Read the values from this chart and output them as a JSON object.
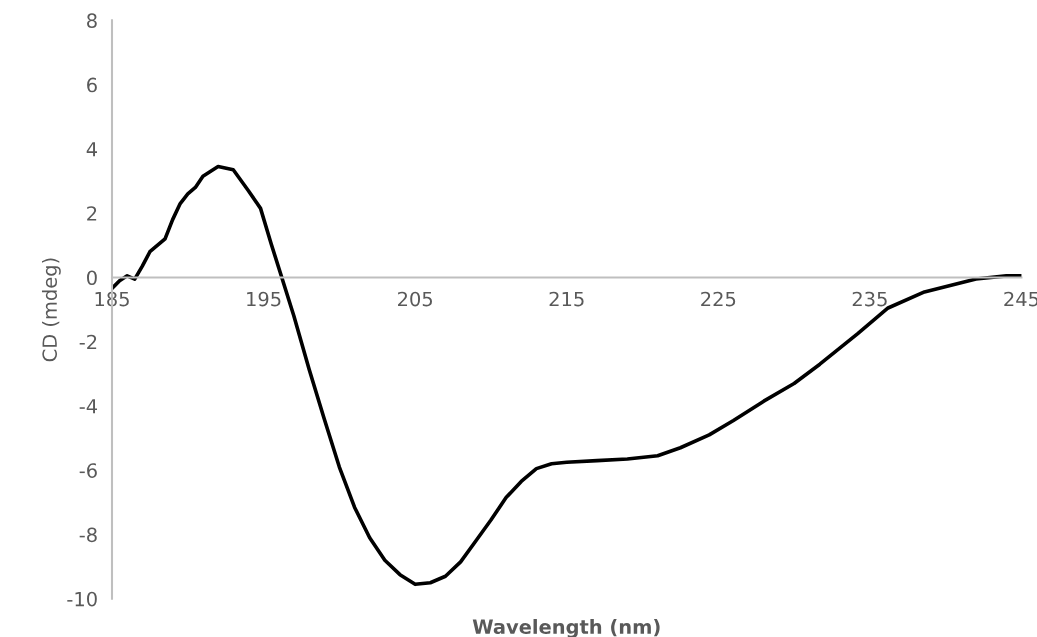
{
  "chart_data": {
    "type": "line",
    "xlabel": "Wavelength (nm)",
    "ylabel": "CD (mdeg)",
    "xlim": [
      185,
      245
    ],
    "xticks": [
      185,
      195,
      205,
      215,
      225,
      235,
      245
    ],
    "ylim": [
      -10,
      8
    ],
    "yticks": [
      -10,
      -8,
      -6,
      -4,
      -2,
      0,
      2,
      4,
      6,
      8
    ],
    "grid": false,
    "legend": false,
    "marker": "none",
    "line_style": "solid",
    "series": [
      {
        "color": "#000000",
        "x": [
          185,
          185.5,
          186,
          186.5,
          187,
          187.5,
          188.5,
          189,
          189.5,
          190,
          190.5,
          191,
          192,
          193,
          194,
          194.8,
          195.5,
          196,
          197,
          198,
          199,
          200,
          201,
          202,
          203,
          204,
          205,
          206,
          207,
          208,
          209,
          210,
          211,
          212,
          213,
          214,
          215,
          217,
          219,
          221,
          222.5,
          224.4,
          226,
          228,
          230,
          231.7,
          234.2,
          236.2,
          238.6,
          242,
          244,
          245
        ],
        "values": [
          -0.34,
          -0.1,
          0.05,
          -0.05,
          0.35,
          0.8,
          1.2,
          1.8,
          2.3,
          2.6,
          2.8,
          3.15,
          3.45,
          3.35,
          2.7,
          2.15,
          1.05,
          0.3,
          -1.2,
          -2.85,
          -4.4,
          -5.9,
          -7.15,
          -8.1,
          -8.8,
          -9.25,
          -9.55,
          -9.5,
          -9.3,
          -8.85,
          -8.2,
          -7.55,
          -6.85,
          -6.35,
          -5.95,
          -5.8,
          -5.75,
          -5.7,
          -5.65,
          -5.55,
          -5.3,
          -4.9,
          -4.45,
          -3.85,
          -3.3,
          -2.7,
          -1.75,
          -0.95,
          -0.45,
          -0.05,
          0.05,
          0.05
        ]
      }
    ]
  }
}
